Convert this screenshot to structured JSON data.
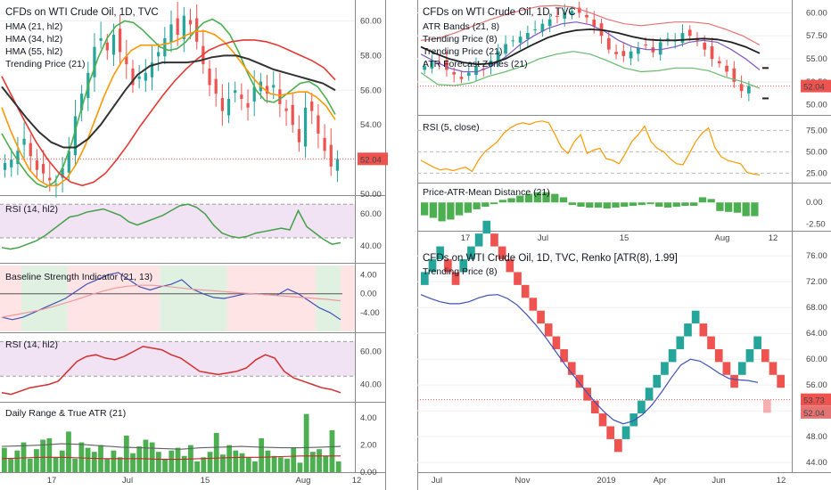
{
  "colors": {
    "up": "#26a69a",
    "down": "#ef5350",
    "bar_green": "#4caf50",
    "hma21": "#4caf50",
    "hma34": "#ff9800",
    "hma55": "#e53935",
    "trend21": "#333333",
    "rsi": "#43a047",
    "rsi_red": "#d32f2f",
    "bsi": "#3f51b5",
    "bsi_ma": "#ef9a9a",
    "atrline": "#5c6bc0",
    "price_tag": "#ef5350",
    "rsi_band": "#e1bee7",
    "renko_trend": "#3f51b5"
  },
  "chart_data": [
    {
      "panel": "left-price",
      "type": "candlestick",
      "title": "CFDs on WTI Crude Oil, 1D, TVC",
      "legend": [
        "HMA (21, hl2)",
        "HMA (34, hl2)",
        "HMA (55, hl2)",
        "Trending Price (21)"
      ],
      "yticks": [
        "50.00",
        "52.00",
        "54.00",
        "56.00",
        "58.00",
        "60.00"
      ],
      "ylim": [
        50,
        61
      ],
      "last_price": "52.04",
      "close": [
        51.8,
        52.0,
        52.5,
        53.2,
        52.2,
        51.4,
        51.2,
        50.8,
        50.6,
        51.5,
        52.5,
        54.5,
        55.8,
        57.0,
        58.5,
        59.0,
        58.3,
        59.2,
        58.2,
        57.5,
        56.3,
        56.8,
        57.0,
        57.6,
        58.2,
        59.0,
        59.8,
        59.2,
        60.3,
        59.8,
        58.8,
        57.5,
        56.3,
        55.8,
        54.8,
        55.5,
        56.0,
        55.5,
        55.0,
        56.2,
        56.5,
        55.8,
        56.3,
        55.2,
        54.8,
        54.0,
        53.0,
        55.0,
        54.8,
        53.5,
        52.5,
        51.6,
        52.04
      ],
      "lines": [
        {
          "name": "HMA (21, hl2)",
          "values": [
            53.5,
            52.6,
            51.8,
            51.1,
            50.6,
            50.4,
            50.7,
            51.6,
            53.0,
            54.8,
            56.5,
            57.9,
            59.0,
            59.7,
            60.0,
            59.9,
            59.5,
            59.0,
            58.5,
            58.3,
            58.4,
            58.8,
            59.4,
            59.9,
            60.1,
            59.8,
            59.2,
            58.2,
            57.0,
            56.0,
            55.4,
            55.3,
            55.6,
            56.0,
            56.4,
            56.5,
            56.2,
            55.5,
            54.6
          ]
        },
        {
          "name": "HMA (34, hl2)",
          "values": [
            55.0,
            53.6,
            52.4,
            51.4,
            50.8,
            50.5,
            50.5,
            50.9,
            51.7,
            52.8,
            54.2,
            55.6,
            56.8,
            57.7,
            58.3,
            58.6,
            58.6,
            58.6,
            58.7,
            58.9,
            59.2,
            59.4,
            59.4,
            59.2,
            58.8,
            58.2,
            57.5,
            56.8,
            56.2,
            55.8,
            55.7,
            55.8,
            55.9,
            55.9,
            55.6,
            55.1,
            54.3
          ]
        },
        {
          "name": "HMA (55, hl2)",
          "values": [
            56.8,
            55.5,
            54.2,
            53.0,
            52.0,
            51.2,
            50.7,
            50.5,
            50.7,
            51.2,
            52.0,
            52.9,
            53.9,
            54.8,
            55.7,
            56.5,
            57.2,
            57.8,
            58.3,
            58.6,
            58.8,
            58.9,
            58.9,
            58.8,
            58.6,
            58.3,
            58.0,
            57.7,
            57.3,
            56.6
          ]
        },
        {
          "name": "Trending Price (21)",
          "values": [
            56.2,
            55.3,
            54.4,
            53.6,
            53.0,
            52.7,
            52.7,
            53.2,
            54.0,
            55.0,
            56.0,
            56.9,
            57.4,
            57.6,
            57.6,
            57.6,
            57.7,
            57.9,
            58.0,
            58.0,
            57.8,
            57.5,
            57.2,
            57.0,
            56.8,
            56.6,
            56.4,
            56.0
          ]
        }
      ]
    },
    {
      "panel": "left-rsi-1",
      "type": "line",
      "title": "RSI (14, hl2)",
      "yticks": [
        "40.00",
        "60.00"
      ],
      "ylim": [
        30,
        70
      ],
      "band": [
        45,
        66
      ],
      "values": [
        39,
        38,
        39,
        41,
        43,
        46,
        50,
        54,
        58,
        59,
        61,
        62,
        63,
        61,
        59,
        55,
        53,
        55,
        57,
        59,
        62,
        65,
        66,
        64,
        60,
        53,
        48,
        46,
        45,
        46,
        48,
        49,
        50,
        51,
        50,
        62,
        52,
        48,
        44,
        41,
        42
      ]
    },
    {
      "panel": "left-bsi",
      "type": "line",
      "title": "Baseline Strength Indicator (21, 13)",
      "yticks": [
        "4.00",
        "0.00",
        "-4.00"
      ],
      "ylim": [
        -8,
        6
      ],
      "zones": [
        "down",
        "up",
        "down",
        "up",
        "down",
        "up",
        "down"
      ],
      "series": [
        {
          "name": "",
          "values": [
            -5.0,
            -5.5,
            -5.0,
            -4.0,
            -3.0,
            -2.0,
            -1.0,
            0.5,
            2.0,
            3.0,
            4.0,
            4.5,
            3.0,
            1.5,
            0.8,
            1.5,
            2.0,
            3.0,
            1.0,
            0.0,
            -0.8,
            -1.0,
            -0.5,
            0.0,
            0.0,
            -0.2,
            -0.3,
            1.0,
            0.0,
            -1.5,
            -3.0,
            -4.0,
            -5.5
          ]
        },
        {
          "name": "",
          "values": [
            -5.0,
            -4.5,
            -4.0,
            -3.5,
            -2.8,
            -2.0,
            -1.2,
            -0.3,
            0.5,
            1.2,
            1.6,
            1.8,
            1.8,
            1.6,
            1.3,
            1.0,
            0.8,
            0.6,
            0.4,
            0.2,
            0.0,
            -0.2,
            -0.4,
            -0.6,
            -0.8,
            -1.0,
            -1.2,
            -1.5
          ]
        }
      ]
    },
    {
      "panel": "left-rsi-2",
      "type": "line",
      "title": "RSI (14, hl2)",
      "yticks": [
        "60.00",
        "40.00"
      ],
      "ylim": [
        30,
        70
      ],
      "band": [
        45,
        66
      ],
      "values": [
        35,
        34,
        36,
        38,
        39,
        40,
        42,
        48,
        54,
        57,
        58,
        56,
        55,
        57,
        60,
        63,
        62,
        61,
        58,
        56,
        52,
        48,
        47,
        46,
        47,
        48,
        50,
        55,
        58,
        56,
        48,
        44,
        42,
        40,
        38,
        37,
        35
      ]
    },
    {
      "panel": "left-atr",
      "type": "bar",
      "title": "Daily Range & True ATR (21)",
      "yticks": [
        "4.00",
        "2.00",
        "0.00"
      ],
      "ylim": [
        0,
        5
      ],
      "values": [
        1.8,
        1.0,
        1.6,
        2.2,
        1.0,
        1.7,
        2.4,
        2.5,
        1.1,
        1.6,
        3.0,
        1.0,
        2.2,
        1.8,
        1.5,
        2.0,
        1.0,
        1.6,
        1.1,
        2.7,
        1.4,
        1.9,
        2.4,
        2.2,
        1.5,
        1.0,
        1.6,
        1.8,
        1.2,
        2.0,
        0.8,
        1.1,
        1.5,
        2.9,
        1.3,
        2.0,
        1.6,
        1.4,
        1.1,
        0.8,
        2.5,
        1.6,
        1.2,
        1.1,
        1.0,
        1.8,
        0.7,
        4.3,
        1.5,
        1.7,
        1.2,
        3.1,
        0.8
      ],
      "lines": [
        {
          "name": "",
          "values": [
            1.9,
            1.95,
            2.0,
            2.1,
            2.05,
            1.95,
            1.85,
            1.8,
            1.75,
            1.7,
            1.8,
            1.85,
            1.9,
            1.85,
            1.8,
            1.8,
            1.85,
            1.9
          ]
        },
        {
          "name": "",
          "values": [
            1.0,
            1.05,
            1.1,
            1.1,
            1.05,
            1.0,
            1.0,
            1.0,
            0.95,
            0.95,
            1.0,
            1.05,
            1.1,
            1.1,
            1.15,
            1.2,
            1.2,
            1.2
          ]
        }
      ]
    },
    {
      "panel": "right-price",
      "type": "candlestick",
      "title": "CFDs on WTI Crude Oil, 1D, TVC",
      "legend": [
        "ATR Bands (21, 8)",
        "Trending Price (8)",
        "Trending Price (21)",
        "ATR Forecast Zones (21)"
      ],
      "yticks": [
        "50.00",
        "52.50",
        "55.00",
        "57.50",
        "60.00"
      ],
      "ylim": [
        49,
        61
      ],
      "last_price": "52.04",
      "close": [
        54.2,
        54.8,
        54.5,
        53.8,
        53.3,
        52.8,
        53.5,
        54.2,
        53.8,
        54.8,
        55.8,
        56.6,
        57.0,
        57.4,
        57.8,
        58.2,
        58.8,
        59.3,
        59.6,
        60.0,
        60.2,
        60.0,
        59.5,
        58.5,
        57.5,
        56.0,
        55.5,
        55.3,
        55.8,
        56.2,
        56.5,
        55.7,
        56.8,
        57.2,
        57.0,
        57.8,
        57.5,
        57.0,
        56.0,
        55.0,
        54.5,
        53.6,
        52.5,
        51.5,
        52.04
      ],
      "lines": [
        {
          "name": "ATR Bands (21, 8)",
          "values": [
            57.0,
            57.2,
            57.8,
            58.5,
            59.2,
            59.8,
            60.3,
            60.7,
            60.8,
            60.6,
            60.0,
            59.3,
            58.8,
            58.6,
            58.8,
            59.0,
            59.0,
            58.8,
            58.2,
            57.5,
            56.5
          ]
        },
        {
          "name": "ATR Bands (21, 8)",
          "values": [
            53.5,
            52.2,
            52.1,
            52.4,
            53.1,
            53.6,
            54.2,
            55.0,
            55.5,
            55.8,
            55.5,
            54.8,
            54.0,
            53.6,
            53.7,
            54.0,
            54.0,
            53.7,
            53.0,
            52.5,
            51.8
          ]
        },
        {
          "name": "Trending Price (8)",
          "values": [
            55.5,
            54.7,
            54.0,
            53.6,
            53.6,
            54.2,
            55.2,
            56.5,
            57.5,
            58.3,
            58.8,
            59.0,
            58.7,
            58.0,
            57.0,
            56.3,
            56.0,
            56.0,
            56.3,
            56.8,
            57.0,
            56.8,
            56.0,
            55.0,
            53.8
          ]
        },
        {
          "name": "Trending Price (21)",
          "values": [
            56.3,
            55.6,
            55.0,
            54.6,
            54.4,
            54.5,
            55.0,
            55.8,
            56.6,
            57.3,
            57.8,
            58.1,
            58.2,
            58.1,
            57.8,
            57.4,
            57.1,
            57.0,
            57.0,
            57.1,
            57.2,
            57.1,
            56.8,
            56.3,
            55.6
          ]
        }
      ]
    },
    {
      "panel": "right-rsi",
      "type": "line",
      "title": "RSI (5, close)",
      "yticks": [
        "75.00",
        "50.00",
        "25.00"
      ],
      "ylim": [
        15,
        90
      ],
      "values": [
        40,
        36,
        32,
        29,
        30,
        28,
        30,
        32,
        27,
        40,
        50,
        56,
        62,
        72,
        78,
        82,
        84,
        82,
        85,
        86,
        84,
        70,
        55,
        48,
        62,
        70,
        48,
        52,
        54,
        42,
        40,
        36,
        48,
        62,
        70,
        80,
        62,
        54,
        50,
        42,
        36,
        35,
        48,
        62,
        72,
        78,
        55,
        44,
        40,
        38,
        36,
        26,
        24,
        23
      ]
    },
    {
      "panel": "right-patr",
      "type": "bar",
      "title": "Price-ATR-Mean Distance (21)",
      "yticks": [
        "0.00",
        "-2.50"
      ],
      "ylim": [
        -3.2,
        2.0
      ],
      "values": [
        -1.5,
        -1.8,
        -2.2,
        -2.0,
        -1.5,
        -1.2,
        -0.8,
        -0.5,
        -0.2,
        0.3,
        0.5,
        0.8,
        1.0,
        1.2,
        1.2,
        1.0,
        0.6,
        -0.3,
        -0.5,
        -0.6,
        -0.6,
        -0.7,
        -0.6,
        -0.5,
        -0.4,
        -0.3,
        -0.2,
        -0.5,
        -0.6,
        -0.5,
        -0.4,
        -0.4,
        0.6,
        0.4,
        -1.0,
        -1.1,
        -1.2,
        -1.6,
        -1.6
      ]
    },
    {
      "panel": "right-renko",
      "type": "renko",
      "title": "CFDs on WTI Crude Oil, 1D, TVC, Renko [ATR(8), 1.99]",
      "legend": [
        "Trending Price (8)"
      ],
      "yticks": [
        "44.00",
        "48.00",
        "52.00",
        "56.00",
        "60.00",
        "64.00",
        "68.00",
        "72.00",
        "76.00"
      ],
      "ylim": [
        42.5,
        77
      ],
      "last_price": "52.04",
      "prev_close": "53.73",
      "bricks": [
        "up",
        "up",
        "up",
        "down",
        "down",
        "up",
        "up",
        "up",
        "up",
        "down",
        "down",
        "down",
        "down",
        "down",
        "down",
        "down",
        "down",
        "down",
        "down",
        "down",
        "down",
        "down",
        "down",
        "down",
        "down",
        "down",
        "up",
        "up",
        "up",
        "up",
        "up",
        "up",
        "up",
        "up",
        "up",
        "up",
        "down",
        "down",
        "down",
        "down",
        "down",
        "up",
        "up",
        "up",
        "down",
        "down",
        "down"
      ],
      "trend": [
        70.0,
        69.4,
        68.9,
        68.6,
        68.6,
        68.9,
        69.5,
        69.9,
        70.0,
        69.4,
        68.4,
        66.9,
        65.2,
        63.3,
        61.2,
        59.1,
        57.2,
        55.3,
        53.5,
        51.9,
        50.6,
        50.0,
        50.4,
        51.4,
        52.9,
        54.9,
        57.1,
        59.1,
        60.0,
        59.7,
        58.8,
        57.8,
        57.0,
        56.8,
        56.7,
        56.4
      ]
    }
  ],
  "x_axis": {
    "left": [
      "17",
      "Jul",
      "15",
      "Aug",
      "12"
    ],
    "right_top": [
      "17",
      "Jul",
      "15",
      "Aug",
      "12"
    ],
    "right_renko": [
      "Jul",
      "Nov",
      "2019",
      "Apr",
      "Jun",
      "12"
    ]
  }
}
